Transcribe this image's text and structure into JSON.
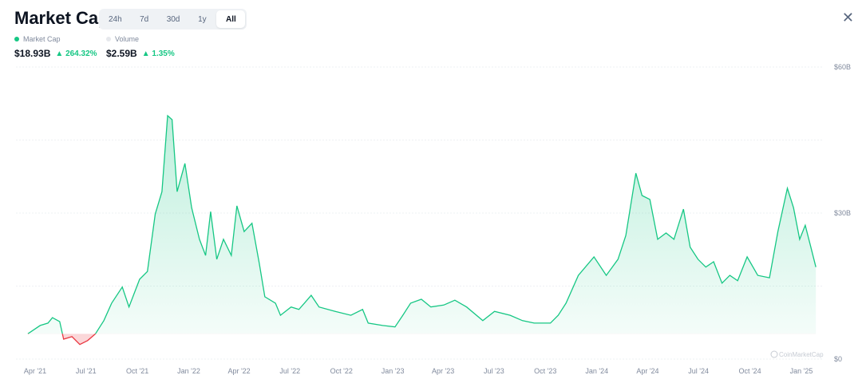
{
  "header": {
    "title": "Market Cap",
    "tabs": [
      "24h",
      "7d",
      "30d",
      "1y",
      "All"
    ],
    "active_tab": "All",
    "close_icon": "close-x-icon"
  },
  "legend": {
    "market_cap": {
      "label": "Market Cap",
      "value": "$18.93B",
      "change": "264.32%",
      "color": "#16c784"
    },
    "volume": {
      "label": "Volume",
      "value": "$2.59B",
      "change": "1.35%",
      "color": "#e6e8ec"
    }
  },
  "colors": {
    "up": "#16c784",
    "down": "#ea3943"
  },
  "chart_data": {
    "type": "area",
    "ylim": [
      0,
      60
    ],
    "y_ticks": [
      "$0",
      "$30B",
      "$60B"
    ],
    "y_tick_values": [
      0,
      30,
      60
    ],
    "x_tick_labels": [
      "Apr '21",
      "Jul '21",
      "Oct '21",
      "Jan '22",
      "Apr '22",
      "Jul '22",
      "Oct '22",
      "Jan '23",
      "Apr '23",
      "Jul '23",
      "Oct '23",
      "Jan '24",
      "Apr '24",
      "Jul '24",
      "Oct '24",
      "Jan '25"
    ],
    "x_tick_dates": [
      "2021-04-01",
      "2021-07-01",
      "2021-10-01",
      "2022-01-01",
      "2022-04-01",
      "2022-07-01",
      "2022-10-01",
      "2023-01-01",
      "2023-04-01",
      "2023-07-01",
      "2023-10-01",
      "2024-01-01",
      "2024-04-01",
      "2024-07-01",
      "2024-10-01",
      "2025-01-01"
    ],
    "x_range": [
      "2021-03-19",
      "2025-01-27"
    ],
    "watermark": "CoinMarketCap",
    "series": [
      {
        "name": "Market Cap",
        "unit": "billion USD",
        "points": [
          [
            "2021-03-19",
            5.2
          ],
          [
            "2021-04-10",
            6.9
          ],
          [
            "2021-04-24",
            7.4
          ],
          [
            "2021-05-02",
            8.5
          ],
          [
            "2021-05-15",
            7.7
          ],
          [
            "2021-05-22",
            4.1
          ],
          [
            "2021-06-06",
            4.6
          ],
          [
            "2021-06-20",
            3.0
          ],
          [
            "2021-07-04",
            3.8
          ],
          [
            "2021-07-18",
            5.2
          ],
          [
            "2021-08-02",
            7.9
          ],
          [
            "2021-08-16",
            11.5
          ],
          [
            "2021-09-04",
            14.8
          ],
          [
            "2021-09-16",
            10.7
          ],
          [
            "2021-10-05",
            16.4
          ],
          [
            "2021-10-19",
            18.0
          ],
          [
            "2021-11-02",
            29.8
          ],
          [
            "2021-11-14",
            34.4
          ],
          [
            "2021-11-24",
            50.0
          ],
          [
            "2021-12-02",
            49.2
          ],
          [
            "2021-12-11",
            34.4
          ],
          [
            "2021-12-25",
            40.2
          ],
          [
            "2022-01-06",
            31.1
          ],
          [
            "2022-01-20",
            24.6
          ],
          [
            "2022-01-31",
            21.3
          ],
          [
            "2022-02-09",
            30.3
          ],
          [
            "2022-02-20",
            20.5
          ],
          [
            "2022-03-04",
            24.6
          ],
          [
            "2022-03-18",
            21.3
          ],
          [
            "2022-03-28",
            31.5
          ],
          [
            "2022-04-10",
            26.2
          ],
          [
            "2022-04-24",
            27.9
          ],
          [
            "2022-05-07",
            19.7
          ],
          [
            "2022-05-17",
            12.8
          ],
          [
            "2022-06-05",
            11.5
          ],
          [
            "2022-06-14",
            9.0
          ],
          [
            "2022-07-03",
            10.7
          ],
          [
            "2022-07-17",
            10.2
          ],
          [
            "2022-08-08",
            13.1
          ],
          [
            "2022-08-22",
            10.7
          ],
          [
            "2022-09-20",
            9.8
          ],
          [
            "2022-10-18",
            9.0
          ],
          [
            "2022-11-08",
            10.2
          ],
          [
            "2022-11-18",
            7.4
          ],
          [
            "2022-12-14",
            6.9
          ],
          [
            "2023-01-05",
            6.6
          ],
          [
            "2023-01-19",
            9.0
          ],
          [
            "2023-02-02",
            11.5
          ],
          [
            "2023-02-21",
            12.3
          ],
          [
            "2023-03-10",
            10.7
          ],
          [
            "2023-04-02",
            11.1
          ],
          [
            "2023-04-22",
            12.1
          ],
          [
            "2023-05-13",
            10.7
          ],
          [
            "2023-06-11",
            7.9
          ],
          [
            "2023-07-02",
            9.8
          ],
          [
            "2023-07-30",
            9.0
          ],
          [
            "2023-08-21",
            7.9
          ],
          [
            "2023-09-11",
            7.4
          ],
          [
            "2023-10-10",
            7.4
          ],
          [
            "2023-10-24",
            9.0
          ],
          [
            "2023-11-07",
            11.5
          ],
          [
            "2023-11-29",
            17.2
          ],
          [
            "2023-12-27",
            21.0
          ],
          [
            "2024-01-18",
            17.2
          ],
          [
            "2024-02-08",
            20.5
          ],
          [
            "2024-02-22",
            25.4
          ],
          [
            "2024-03-11",
            38.2
          ],
          [
            "2024-03-22",
            33.6
          ],
          [
            "2024-04-05",
            32.8
          ],
          [
            "2024-04-19",
            24.6
          ],
          [
            "2024-05-04",
            25.9
          ],
          [
            "2024-05-18",
            24.6
          ],
          [
            "2024-06-04",
            30.8
          ],
          [
            "2024-06-16",
            23.0
          ],
          [
            "2024-06-30",
            20.5
          ],
          [
            "2024-07-14",
            18.9
          ],
          [
            "2024-07-28",
            20.0
          ],
          [
            "2024-08-12",
            15.6
          ],
          [
            "2024-08-26",
            17.2
          ],
          [
            "2024-09-09",
            16.1
          ],
          [
            "2024-09-26",
            21.0
          ],
          [
            "2024-10-15",
            17.2
          ],
          [
            "2024-11-05",
            16.7
          ],
          [
            "2024-11-20",
            26.2
          ],
          [
            "2024-12-07",
            35.1
          ],
          [
            "2024-12-18",
            31.1
          ],
          [
            "2024-12-29",
            24.6
          ],
          [
            "2025-01-08",
            27.5
          ],
          [
            "2025-01-18",
            23.0
          ],
          [
            "2025-01-27",
            18.9
          ]
        ]
      }
    ]
  }
}
